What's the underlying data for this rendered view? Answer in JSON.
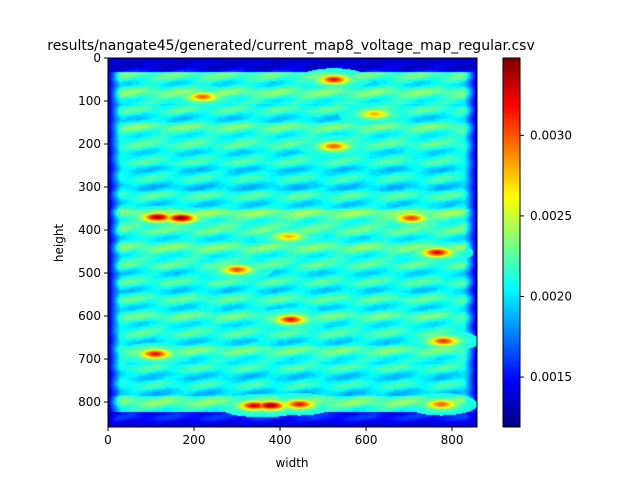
{
  "chart_data": {
    "type": "heatmap",
    "title": "results/nangate45/generated/current_map8_voltage_map_regular.csv",
    "xlabel": "width",
    "ylabel": "height",
    "xlim": [
      0,
      858
    ],
    "ylim": [
      858,
      0
    ],
    "x_ticks": [
      0,
      200,
      400,
      600,
      800
    ],
    "y_ticks": [
      0,
      100,
      200,
      300,
      400,
      500,
      600,
      700,
      800
    ],
    "colorbar": {
      "min": 0.00119,
      "max": 0.00348,
      "ticks": [
        "0.0015",
        "0.0020",
        "0.0025",
        "0.0030"
      ],
      "tick_values": [
        0.0015,
        0.002,
        0.0025,
        0.003
      ],
      "colormap": "jet"
    },
    "baseline_value": 0.0021,
    "edge_value": 0.00135,
    "row_bands": [
      {
        "y": 15,
        "value": 0.0016
      },
      {
        "y": 50,
        "value": 0.00225
      },
      {
        "y": 85,
        "value": 0.0023
      },
      {
        "y": 130,
        "value": 0.0022
      },
      {
        "y": 170,
        "value": 0.00228
      },
      {
        "y": 210,
        "value": 0.00222
      },
      {
        "y": 250,
        "value": 0.00218
      },
      {
        "y": 290,
        "value": 0.00215
      },
      {
        "y": 330,
        "value": 0.0022
      },
      {
        "y": 370,
        "value": 0.00235
      },
      {
        "y": 410,
        "value": 0.00225
      },
      {
        "y": 450,
        "value": 0.0023
      },
      {
        "y": 490,
        "value": 0.00222
      },
      {
        "y": 525,
        "value": 0.0022
      },
      {
        "y": 570,
        "value": 0.00222
      },
      {
        "y": 610,
        "value": 0.00225
      },
      {
        "y": 650,
        "value": 0.0022
      },
      {
        "y": 690,
        "value": 0.00228
      },
      {
        "y": 725,
        "value": 0.00218
      },
      {
        "y": 765,
        "value": 0.00215
      },
      {
        "y": 805,
        "value": 0.00232
      },
      {
        "y": 840,
        "value": 0.00165
      }
    ],
    "hotspots": [
      {
        "x": 525,
        "y": 50,
        "value": 0.0032
      },
      {
        "x": 220,
        "y": 90,
        "value": 0.003
      },
      {
        "x": 620,
        "y": 130,
        "value": 0.0028
      },
      {
        "x": 525,
        "y": 205,
        "value": 0.003
      },
      {
        "x": 115,
        "y": 370,
        "value": 0.0034
      },
      {
        "x": 170,
        "y": 372,
        "value": 0.00348
      },
      {
        "x": 705,
        "y": 372,
        "value": 0.0031
      },
      {
        "x": 420,
        "y": 415,
        "value": 0.0028
      },
      {
        "x": 765,
        "y": 452,
        "value": 0.00325
      },
      {
        "x": 300,
        "y": 492,
        "value": 0.00305
      },
      {
        "x": 425,
        "y": 608,
        "value": 0.0032
      },
      {
        "x": 780,
        "y": 658,
        "value": 0.0031
      },
      {
        "x": 110,
        "y": 688,
        "value": 0.0032
      },
      {
        "x": 340,
        "y": 808,
        "value": 0.0033
      },
      {
        "x": 378,
        "y": 808,
        "value": 0.00345
      },
      {
        "x": 445,
        "y": 805,
        "value": 0.0032
      },
      {
        "x": 775,
        "y": 805,
        "value": 0.003
      }
    ]
  }
}
